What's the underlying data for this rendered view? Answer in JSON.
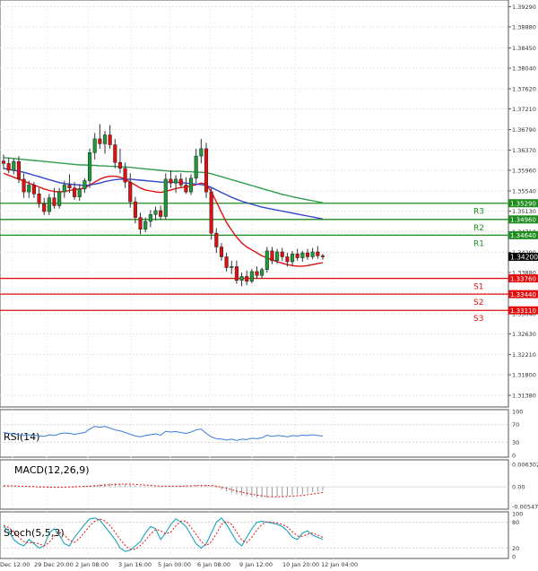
{
  "chart_data": {
    "type": "candlestick",
    "instrument_hint": "GBP/USD style forex chart",
    "x_labels": [
      "Dec 12:00",
      "29 Dec 20:00",
      "2 Jan 08:00",
      "3 Jan 16:00",
      "5 Jan 00:00",
      "6 Jan 08:00",
      "9 Jan 12:00",
      "10 Jan 20:00",
      "12 Jan 04:00"
    ],
    "y_ticks": [
      "1.39290",
      "1.38880",
      "1.38450",
      "1.38040",
      "1.37620",
      "1.37210",
      "1.36790",
      "1.36370",
      "1.35960",
      "1.35540",
      "1.35130",
      "1.34710",
      "1.34290",
      "1.33880",
      "1.33460",
      "1.33040",
      "1.32630",
      "1.32210",
      "1.31800",
      "1.31380"
    ],
    "ylim": [
      1.3118,
      1.3939
    ],
    "current_price": {
      "value": 1.342,
      "label": "1.34200"
    },
    "levels": [
      {
        "name": "R3",
        "value": 1.3529,
        "label": "1.35290",
        "kind": "resistance",
        "color": "#1e8c1e"
      },
      {
        "name": "R2",
        "value": 1.3496,
        "label": "1.34960",
        "kind": "resistance",
        "color": "#1e8c1e"
      },
      {
        "name": "R1",
        "value": 1.3464,
        "label": "1.34640",
        "kind": "resistance",
        "color": "#1e8c1e"
      },
      {
        "name": "S1",
        "value": 1.3376,
        "label": "1.33760",
        "kind": "support",
        "color": "#e01010"
      },
      {
        "name": "S2",
        "value": 1.3344,
        "label": "1.33440",
        "kind": "support",
        "color": "#e01010"
      },
      {
        "name": "S3",
        "value": 1.3311,
        "label": "1.33110",
        "kind": "support",
        "color": "#e01010"
      }
    ],
    "candles": [
      {
        "o": 1.3615,
        "h": 1.3628,
        "l": 1.3598,
        "c": 1.361
      },
      {
        "o": 1.361,
        "h": 1.3622,
        "l": 1.359,
        "c": 1.3596
      },
      {
        "o": 1.3596,
        "h": 1.362,
        "l": 1.3588,
        "c": 1.3614
      },
      {
        "o": 1.3614,
        "h": 1.3625,
        "l": 1.357,
        "c": 1.3578
      },
      {
        "o": 1.3578,
        "h": 1.359,
        "l": 1.354,
        "c": 1.3552
      },
      {
        "o": 1.3552,
        "h": 1.3575,
        "l": 1.354,
        "c": 1.3566
      },
      {
        "o": 1.3566,
        "h": 1.3572,
        "l": 1.354,
        "c": 1.3548
      },
      {
        "o": 1.3548,
        "h": 1.356,
        "l": 1.352,
        "c": 1.3528
      },
      {
        "o": 1.3528,
        "h": 1.354,
        "l": 1.3505,
        "c": 1.3512
      },
      {
        "o": 1.3512,
        "h": 1.3548,
        "l": 1.3505,
        "c": 1.354
      },
      {
        "o": 1.354,
        "h": 1.356,
        "l": 1.3518,
        "c": 1.3524
      },
      {
        "o": 1.3524,
        "h": 1.356,
        "l": 1.3518,
        "c": 1.3552
      },
      {
        "o": 1.3552,
        "h": 1.3575,
        "l": 1.354,
        "c": 1.3566
      },
      {
        "o": 1.3566,
        "h": 1.3588,
        "l": 1.355,
        "c": 1.356
      },
      {
        "o": 1.356,
        "h": 1.3572,
        "l": 1.3536,
        "c": 1.3542
      },
      {
        "o": 1.3542,
        "h": 1.3568,
        "l": 1.3534,
        "c": 1.3558
      },
      {
        "o": 1.3558,
        "h": 1.358,
        "l": 1.355,
        "c": 1.3575
      },
      {
        "o": 1.3575,
        "h": 1.364,
        "l": 1.356,
        "c": 1.3632
      },
      {
        "o": 1.3632,
        "h": 1.3672,
        "l": 1.3618,
        "c": 1.366
      },
      {
        "o": 1.366,
        "h": 1.369,
        "l": 1.364,
        "c": 1.365
      },
      {
        "o": 1.365,
        "h": 1.3676,
        "l": 1.363,
        "c": 1.3668
      },
      {
        "o": 1.3668,
        "h": 1.3688,
        "l": 1.364,
        "c": 1.3648
      },
      {
        "o": 1.3648,
        "h": 1.366,
        "l": 1.36,
        "c": 1.3612
      },
      {
        "o": 1.3612,
        "h": 1.364,
        "l": 1.359,
        "c": 1.36
      },
      {
        "o": 1.36,
        "h": 1.3612,
        "l": 1.356,
        "c": 1.3572
      },
      {
        "o": 1.3572,
        "h": 1.359,
        "l": 1.352,
        "c": 1.3532
      },
      {
        "o": 1.3532,
        "h": 1.3542,
        "l": 1.3488,
        "c": 1.35
      },
      {
        "o": 1.35,
        "h": 1.351,
        "l": 1.3466,
        "c": 1.3476
      },
      {
        "o": 1.3476,
        "h": 1.35,
        "l": 1.347,
        "c": 1.3492
      },
      {
        "o": 1.3492,
        "h": 1.3515,
        "l": 1.348,
        "c": 1.3506
      },
      {
        "o": 1.3506,
        "h": 1.3522,
        "l": 1.3494,
        "c": 1.3514
      },
      {
        "o": 1.3514,
        "h": 1.3524,
        "l": 1.3496,
        "c": 1.3502
      },
      {
        "o": 1.3502,
        "h": 1.359,
        "l": 1.3496,
        "c": 1.3578
      },
      {
        "o": 1.3578,
        "h": 1.3596,
        "l": 1.356,
        "c": 1.357
      },
      {
        "o": 1.357,
        "h": 1.3586,
        "l": 1.355,
        "c": 1.3578
      },
      {
        "o": 1.3578,
        "h": 1.359,
        "l": 1.356,
        "c": 1.3566
      },
      {
        "o": 1.3566,
        "h": 1.3582,
        "l": 1.3548,
        "c": 1.3552
      },
      {
        "o": 1.3552,
        "h": 1.3588,
        "l": 1.3546,
        "c": 1.358
      },
      {
        "o": 1.358,
        "h": 1.364,
        "l": 1.357,
        "c": 1.3625
      },
      {
        "o": 1.3625,
        "h": 1.366,
        "l": 1.361,
        "c": 1.364
      },
      {
        "o": 1.364,
        "h": 1.3652,
        "l": 1.354,
        "c": 1.3552
      },
      {
        "o": 1.3552,
        "h": 1.356,
        "l": 1.3455,
        "c": 1.3468
      },
      {
        "o": 1.3468,
        "h": 1.3478,
        "l": 1.3428,
        "c": 1.344
      },
      {
        "o": 1.344,
        "h": 1.3448,
        "l": 1.3412,
        "c": 1.342
      },
      {
        "o": 1.342,
        "h": 1.3428,
        "l": 1.339,
        "c": 1.3398
      },
      {
        "o": 1.3398,
        "h": 1.3412,
        "l": 1.3385,
        "c": 1.34
      },
      {
        "o": 1.34,
        "h": 1.3412,
        "l": 1.3365,
        "c": 1.3372
      },
      {
        "o": 1.3372,
        "h": 1.3388,
        "l": 1.336,
        "c": 1.338
      },
      {
        "o": 1.338,
        "h": 1.3392,
        "l": 1.3362,
        "c": 1.337
      },
      {
        "o": 1.337,
        "h": 1.3395,
        "l": 1.3366,
        "c": 1.339
      },
      {
        "o": 1.339,
        "h": 1.34,
        "l": 1.3376,
        "c": 1.3382
      },
      {
        "o": 1.3382,
        "h": 1.3398,
        "l": 1.3375,
        "c": 1.3394
      },
      {
        "o": 1.3394,
        "h": 1.344,
        "l": 1.3388,
        "c": 1.3432
      },
      {
        "o": 1.3432,
        "h": 1.344,
        "l": 1.3405,
        "c": 1.3412
      },
      {
        "o": 1.3412,
        "h": 1.3436,
        "l": 1.3406,
        "c": 1.343
      },
      {
        "o": 1.343,
        "h": 1.3438,
        "l": 1.3412,
        "c": 1.342
      },
      {
        "o": 1.342,
        "h": 1.3428,
        "l": 1.34,
        "c": 1.341
      },
      {
        "o": 1.341,
        "h": 1.3432,
        "l": 1.3402,
        "c": 1.3426
      },
      {
        "o": 1.3426,
        "h": 1.3436,
        "l": 1.3412,
        "c": 1.3418
      },
      {
        "o": 1.3418,
        "h": 1.3432,
        "l": 1.341,
        "c": 1.3428
      },
      {
        "o": 1.3428,
        "h": 1.3436,
        "l": 1.3414,
        "c": 1.342
      },
      {
        "o": 1.342,
        "h": 1.3438,
        "l": 1.3415,
        "c": 1.343
      },
      {
        "o": 1.343,
        "h": 1.3442,
        "l": 1.3416,
        "c": 1.3422
      },
      {
        "o": 1.3422,
        "h": 1.3426,
        "l": 1.3414,
        "c": 1.342
      }
    ],
    "moving_averages": [
      {
        "name": "MA fast",
        "color": "#e01010",
        "values": [
          1.359,
          1.3586,
          1.3582,
          1.3578,
          1.3574,
          1.357,
          1.3566,
          1.3562,
          1.3558,
          1.3555,
          1.3553,
          1.3552,
          1.3553,
          1.3555,
          1.3557,
          1.3558,
          1.356,
          1.3566,
          1.3572,
          1.3578,
          1.3582,
          1.3584,
          1.3584,
          1.3582,
          1.3578,
          1.3572,
          1.3566,
          1.356,
          1.3556,
          1.3554,
          1.3552,
          1.3551,
          1.3553,
          1.3556,
          1.3559,
          1.3561,
          1.3562,
          1.3564,
          1.3567,
          1.357,
          1.3568,
          1.3552,
          1.3532,
          1.351,
          1.349,
          1.3474,
          1.346,
          1.3448,
          1.344,
          1.3434,
          1.3428,
          1.3422,
          1.3418,
          1.3414,
          1.341,
          1.3407,
          1.3404,
          1.3402,
          1.3401,
          1.3401,
          1.3402,
          1.3404,
          1.3406,
          1.3408
        ]
      },
      {
        "name": "MA medium",
        "color": "#3344cc",
        "values": [
          1.36,
          1.3598,
          1.3596,
          1.3594,
          1.3592,
          1.3589,
          1.3586,
          1.3583,
          1.358,
          1.3577,
          1.3574,
          1.3571,
          1.3569,
          1.3568,
          1.3567,
          1.3566,
          1.3565,
          1.3566,
          1.3568,
          1.357,
          1.3573,
          1.3575,
          1.3577,
          1.3578,
          1.3578,
          1.3578,
          1.3577,
          1.3576,
          1.3575,
          1.3574,
          1.3573,
          1.3572,
          1.3572,
          1.3572,
          1.3572,
          1.3571,
          1.357,
          1.3569,
          1.3568,
          1.3567,
          1.3565,
          1.3561,
          1.3556,
          1.3551,
          1.3546,
          1.3541,
          1.3537,
          1.3533,
          1.353,
          1.3527,
          1.3524,
          1.3521,
          1.3519,
          1.3517,
          1.3515,
          1.3513,
          1.3511,
          1.3509,
          1.3507,
          1.3505,
          1.3503,
          1.3501,
          1.3499,
          1.3497
        ]
      },
      {
        "name": "MA slow",
        "color": "#2e9e4e",
        "values": [
          1.3622,
          1.3621,
          1.362,
          1.3619,
          1.3618,
          1.3617,
          1.3616,
          1.3615,
          1.3614,
          1.3613,
          1.3612,
          1.3611,
          1.361,
          1.3609,
          1.3608,
          1.3607,
          1.3607,
          1.3606,
          1.3606,
          1.3605,
          1.3605,
          1.3604,
          1.3604,
          1.3603,
          1.3603,
          1.3602,
          1.3601,
          1.36,
          1.3599,
          1.3598,
          1.3597,
          1.3596,
          1.3595,
          1.3594,
          1.3594,
          1.3594,
          1.3593,
          1.3593,
          1.3592,
          1.3592,
          1.3591,
          1.3589,
          1.3586,
          1.3583,
          1.358,
          1.3577,
          1.3574,
          1.3571,
          1.3568,
          1.3565,
          1.3562,
          1.3559,
          1.3556,
          1.3553,
          1.355,
          1.3547,
          1.3545,
          1.3542,
          1.354,
          1.3538,
          1.3536,
          1.3534,
          1.3532,
          1.353
        ]
      }
    ],
    "rsi": {
      "label": "RSI(14)",
      "ticks": [
        "100",
        "70",
        "30",
        "0"
      ],
      "ylim": [
        0,
        100
      ],
      "values": [
        52,
        50,
        49,
        47,
        45,
        47,
        46,
        44,
        43,
        47,
        45,
        49,
        51,
        50,
        48,
        50,
        52,
        60,
        66,
        64,
        66,
        62,
        58,
        56,
        52,
        48,
        44,
        42,
        45,
        47,
        49,
        46,
        55,
        53,
        54,
        52,
        50,
        53,
        58,
        60,
        50,
        42,
        38,
        37,
        35,
        37,
        34,
        37,
        36,
        39,
        38,
        40,
        46,
        43,
        45,
        44,
        42,
        45,
        44,
        46,
        45,
        47,
        45,
        44
      ],
      "color": "#3a7cd6"
    },
    "macd": {
      "label": "MACD(12,26,9)",
      "ticks": [
        "0.006302",
        "0.00",
        "-0.005474"
      ],
      "ylim": [
        -0.005474,
        0.006302
      ],
      "histogram": [
        0.0004,
        0.0003,
        0.0002,
        0.0001,
        0.0,
        -0.0001,
        -0.0001,
        -0.0002,
        -0.0002,
        -0.0002,
        -0.0002,
        -0.0001,
        0.0,
        0.0001,
        0.0002,
        0.0002,
        0.0003,
        0.0004,
        0.0006,
        0.0008,
        0.0009,
        0.001,
        0.001,
        0.0009,
        0.0008,
        0.0006,
        0.0004,
        0.0002,
        0.0001,
        0.0,
        -0.0001,
        -0.0001,
        0.0,
        0.0001,
        0.0002,
        0.0003,
        0.0003,
        0.0004,
        0.0005,
        0.0006,
        0.0005,
        0.0002,
        -0.0003,
        -0.0008,
        -0.0013,
        -0.0017,
        -0.0021,
        -0.0024,
        -0.0026,
        -0.0028,
        -0.0029,
        -0.003,
        -0.003,
        -0.0029,
        -0.0028,
        -0.0027,
        -0.0025,
        -0.0023,
        -0.0021,
        -0.0019,
        -0.0017,
        -0.0015,
        -0.0013,
        -0.0011
      ],
      "signal": [
        0.0003,
        0.0003,
        0.0003,
        0.0002,
        0.0002,
        0.0001,
        0.0001,
        0.0,
        0.0,
        -0.0001,
        -0.0001,
        -0.0001,
        -0.0001,
        0.0,
        0.0,
        0.0001,
        0.0001,
        0.0002,
        0.0003,
        0.0004,
        0.0005,
        0.0006,
        0.0007,
        0.0008,
        0.0008,
        0.0008,
        0.0007,
        0.0006,
        0.0005,
        0.0004,
        0.0003,
        0.0002,
        0.0002,
        0.0002,
        0.0002,
        0.0002,
        0.0003,
        0.0003,
        0.0004,
        0.0004,
        0.0004,
        0.0004,
        0.0002,
        -0.0001,
        -0.0004,
        -0.0008,
        -0.0012,
        -0.0015,
        -0.0018,
        -0.0021,
        -0.0023,
        -0.0025,
        -0.0027,
        -0.0028,
        -0.0028,
        -0.0028,
        -0.0027,
        -0.0026,
        -0.0025,
        -0.0024,
        -0.0022,
        -0.002,
        -0.0018,
        -0.0016
      ],
      "signal_color": "#e01010",
      "hist_color": "#999999"
    },
    "stoch": {
      "label": "Stoch(5,5,3)",
      "ticks": [
        "100",
        "80",
        "20",
        "0"
      ],
      "ylim": [
        0,
        100
      ],
      "k": [
        70,
        60,
        40,
        30,
        25,
        40,
        30,
        20,
        25,
        55,
        65,
        50,
        30,
        25,
        45,
        60,
        75,
        88,
        90,
        85,
        70,
        55,
        40,
        20,
        12,
        15,
        25,
        35,
        55,
        70,
        65,
        40,
        55,
        75,
        88,
        80,
        70,
        50,
        30,
        20,
        30,
        55,
        80,
        90,
        75,
        55,
        35,
        25,
        45,
        65,
        80,
        82,
        80,
        78,
        75,
        70,
        60,
        45,
        40,
        55,
        60,
        50,
        45,
        40
      ],
      "d": [
        72,
        68,
        58,
        45,
        35,
        32,
        33,
        30,
        25,
        33,
        48,
        57,
        50,
        38,
        33,
        43,
        57,
        72,
        82,
        88,
        83,
        72,
        57,
        40,
        26,
        17,
        17,
        26,
        38,
        53,
        63,
        60,
        53,
        57,
        72,
        82,
        83,
        68,
        52,
        35,
        25,
        35,
        53,
        75,
        82,
        75,
        57,
        38,
        33,
        45,
        62,
        75,
        81,
        80,
        78,
        75,
        69,
        58,
        48,
        47,
        52,
        55,
        50,
        45
      ],
      "k_color": "#1aa3b8",
      "d_color": "#e01010"
    }
  }
}
